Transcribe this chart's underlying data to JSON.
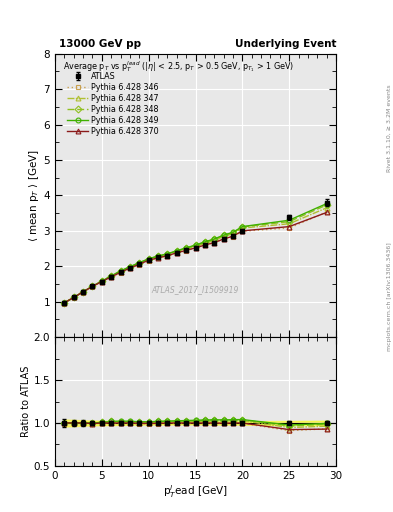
{
  "title_left": "13000 GeV pp",
  "title_right": "Underlying Event",
  "ylabel_main": "⟨ mean p$_T$ ⟩ [GeV]",
  "ylabel_ratio": "Ratio to ATLAS",
  "xlabel": "p$_T^l$ead [GeV]",
  "annotation": "ATLAS_2017_I1509919",
  "right_label_top": "Rivet 3.1.10, ≥ 3.2M events",
  "right_label_bottom": "mcplots.cern.ch [arXiv:1306.3436]",
  "inner_title": "Average p$_T$ vs p$_T^{lead}$ (|$\\eta$| < 2.5, p$_T$ > 0.5 GeV, p$_{T_1}$ > 1 GeV)",
  "ylim_main": [
    0,
    8
  ],
  "ylim_ratio": [
    0.5,
    2
  ],
  "xlim": [
    0,
    30
  ],
  "yticks_main": [
    1,
    2,
    3,
    4,
    5,
    6,
    7,
    8
  ],
  "yticks_ratio": [
    0.5,
    1.0,
    1.5,
    2.0
  ],
  "xticks": [
    0,
    5,
    10,
    15,
    20,
    25,
    30
  ],
  "atlas_x": [
    1,
    2,
    3,
    4,
    5,
    6,
    7,
    8,
    9,
    10,
    11,
    12,
    13,
    14,
    15,
    16,
    17,
    18,
    19,
    20,
    25,
    29
  ],
  "atlas_y": [
    0.97,
    1.12,
    1.28,
    1.44,
    1.57,
    1.7,
    1.83,
    1.95,
    2.07,
    2.18,
    2.25,
    2.3,
    2.38,
    2.45,
    2.52,
    2.6,
    2.67,
    2.78,
    2.85,
    3.0,
    3.38,
    3.79
  ],
  "atlas_yerr": [
    0.04,
    0.04,
    0.04,
    0.04,
    0.04,
    0.04,
    0.04,
    0.04,
    0.04,
    0.04,
    0.04,
    0.04,
    0.04,
    0.04,
    0.04,
    0.04,
    0.05,
    0.05,
    0.05,
    0.06,
    0.08,
    0.1
  ],
  "p346_x": [
    1,
    2,
    3,
    4,
    5,
    6,
    7,
    8,
    9,
    10,
    11,
    12,
    13,
    14,
    15,
    16,
    17,
    18,
    19,
    20,
    25,
    29
  ],
  "p346_y": [
    0.97,
    1.12,
    1.28,
    1.43,
    1.57,
    1.7,
    1.82,
    1.94,
    2.05,
    2.16,
    2.23,
    2.29,
    2.37,
    2.44,
    2.51,
    2.59,
    2.66,
    2.77,
    2.84,
    2.99,
    3.08,
    3.53
  ],
  "p346_color": "#c8a050",
  "p346_linestyle": "dotted",
  "p346_marker": "s",
  "p347_x": [
    1,
    2,
    3,
    4,
    5,
    6,
    7,
    8,
    9,
    10,
    11,
    12,
    13,
    14,
    15,
    16,
    17,
    18,
    19,
    20,
    25,
    29
  ],
  "p347_y": [
    0.97,
    1.12,
    1.28,
    1.44,
    1.58,
    1.72,
    1.85,
    1.97,
    2.08,
    2.19,
    2.27,
    2.33,
    2.41,
    2.49,
    2.56,
    2.65,
    2.73,
    2.84,
    2.92,
    3.08,
    3.2,
    3.65
  ],
  "p347_color": "#b0c030",
  "p347_linestyle": "dashdot",
  "p347_marker": "^",
  "p348_x": [
    1,
    2,
    3,
    4,
    5,
    6,
    7,
    8,
    9,
    10,
    11,
    12,
    13,
    14,
    15,
    16,
    17,
    18,
    19,
    20,
    25,
    29
  ],
  "p348_y": [
    0.97,
    1.12,
    1.28,
    1.44,
    1.58,
    1.73,
    1.86,
    1.98,
    2.1,
    2.21,
    2.29,
    2.35,
    2.43,
    2.51,
    2.59,
    2.68,
    2.76,
    2.87,
    2.95,
    3.11,
    3.26,
    3.73
  ],
  "p348_color": "#90c020",
  "p348_linestyle": "dashed",
  "p348_marker": "D",
  "p349_x": [
    1,
    2,
    3,
    4,
    5,
    6,
    7,
    8,
    9,
    10,
    11,
    12,
    13,
    14,
    15,
    16,
    17,
    18,
    19,
    20,
    25,
    29
  ],
  "p349_y": [
    0.97,
    1.12,
    1.28,
    1.44,
    1.58,
    1.73,
    1.87,
    1.99,
    2.1,
    2.21,
    2.29,
    2.35,
    2.44,
    2.52,
    2.6,
    2.69,
    2.77,
    2.88,
    2.96,
    3.12,
    3.3,
    3.77
  ],
  "p349_color": "#40b000",
  "p349_linestyle": "solid",
  "p349_marker": "o",
  "p370_x": [
    1,
    2,
    3,
    4,
    5,
    6,
    7,
    8,
    9,
    10,
    11,
    12,
    13,
    14,
    15,
    16,
    17,
    18,
    19,
    20,
    25,
    29
  ],
  "p370_y": [
    0.97,
    1.12,
    1.28,
    1.43,
    1.57,
    1.7,
    1.83,
    1.95,
    2.06,
    2.17,
    2.24,
    2.3,
    2.38,
    2.45,
    2.52,
    2.6,
    2.67,
    2.77,
    2.85,
    3.0,
    3.12,
    3.52
  ],
  "p370_color": "#8b1a1a",
  "p370_linestyle": "solid",
  "p370_marker": "^",
  "bg_color": "#e8e8e8"
}
